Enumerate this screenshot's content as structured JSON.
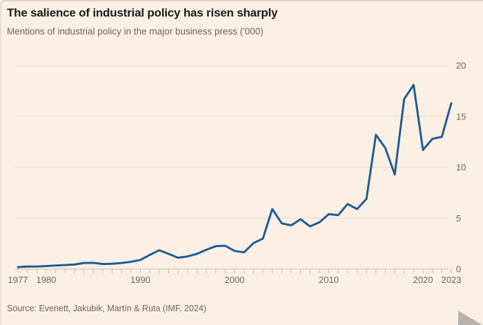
{
  "header": {
    "title": "The salience of industrial policy has risen sharply",
    "subtitle": "Mentions of industrial policy in the major business press ('000)"
  },
  "footer": {
    "source": "Source: Evenett, Jakubik, Martín & Ruta (IMF, 2024)"
  },
  "colors": {
    "background": "#fcf0e4",
    "line": "#1e5c97",
    "grid": "#eadccd",
    "axis": "#c9bdb1",
    "text_primary": "#1c1a19",
    "text_secondary": "#6b645e"
  },
  "chart_data": {
    "type": "line",
    "title": "The salience of industrial policy has risen sharply",
    "subtitle": "Mentions of industrial policy in the major business press ('000)",
    "series_name": "Mentions of industrial policy ('000)",
    "x": [
      1977,
      1978,
      1979,
      1980,
      1981,
      1982,
      1983,
      1984,
      1985,
      1986,
      1987,
      1988,
      1989,
      1990,
      1991,
      1992,
      1993,
      1994,
      1995,
      1996,
      1997,
      1998,
      1999,
      2000,
      2001,
      2002,
      2003,
      2004,
      2005,
      2006,
      2007,
      2008,
      2009,
      2010,
      2011,
      2012,
      2013,
      2014,
      2015,
      2016,
      2017,
      2018,
      2019,
      2020,
      2021,
      2022,
      2023
    ],
    "values": [
      0.2,
      0.25,
      0.25,
      0.3,
      0.35,
      0.4,
      0.45,
      0.6,
      0.62,
      0.5,
      0.52,
      0.6,
      0.72,
      0.9,
      1.4,
      1.85,
      1.5,
      1.12,
      1.25,
      1.5,
      1.9,
      2.25,
      2.3,
      1.78,
      1.65,
      2.55,
      3.0,
      5.9,
      4.5,
      4.3,
      4.9,
      4.2,
      4.6,
      5.4,
      5.3,
      6.4,
      5.9,
      6.9,
      13.2,
      11.9,
      9.3,
      16.7,
      18.1,
      11.7,
      12.8,
      13.0,
      16.3
    ],
    "xlabel": "",
    "ylabel": "",
    "ylim": [
      0,
      20
    ],
    "yticks": [
      0,
      5,
      10,
      15,
      20
    ],
    "xticks_labeled": [
      1977,
      1980,
      1990,
      2000,
      2010,
      2020,
      2023
    ],
    "y_axis_side": "right",
    "grid": true,
    "legend_position": "none"
  }
}
